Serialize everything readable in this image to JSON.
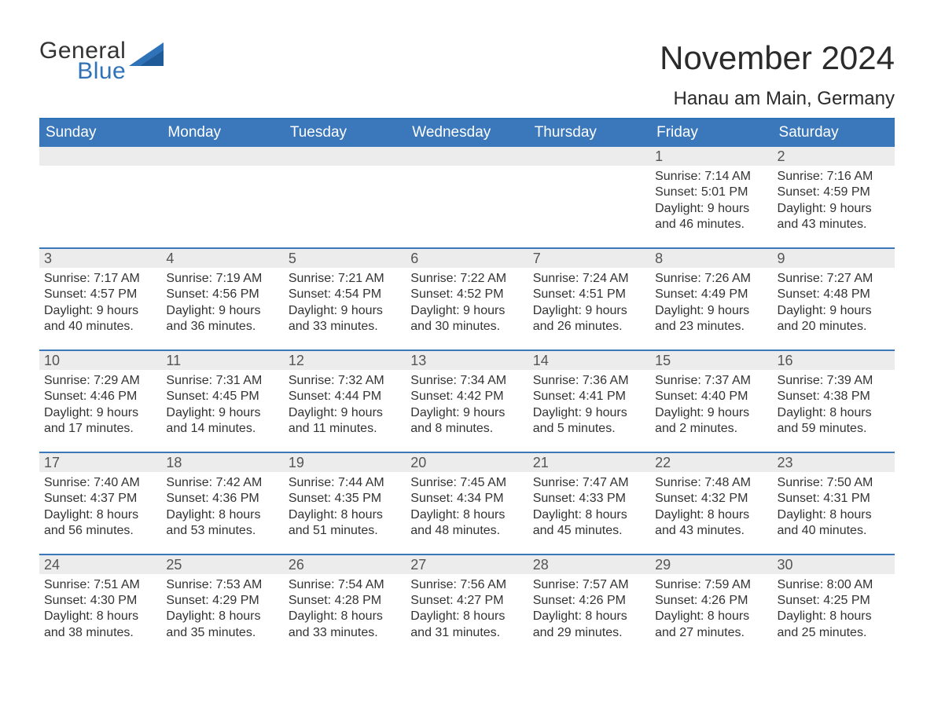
{
  "logo": {
    "word1": "General",
    "word2": "Blue",
    "sail_color": "#2f72b8",
    "text_color": "#333333"
  },
  "title": "November 2024",
  "location": "Hanau am Main, Germany",
  "colors": {
    "header_bg": "#3b78bb",
    "header_text": "#ffffff",
    "row_divider": "#3b78bb",
    "daynum_bg": "#ececec",
    "daynum_text": "#555555",
    "body_text": "#333333",
    "background": "#ffffff"
  },
  "fonts": {
    "title_size": 42,
    "location_size": 24,
    "dow_size": 19,
    "daynum_size": 18,
    "body_size": 16
  },
  "days_of_week": [
    "Sunday",
    "Monday",
    "Tuesday",
    "Wednesday",
    "Thursday",
    "Friday",
    "Saturday"
  ],
  "weeks": [
    [
      {
        "day": null
      },
      {
        "day": null
      },
      {
        "day": null
      },
      {
        "day": null
      },
      {
        "day": null
      },
      {
        "day": "1",
        "sunrise": "Sunrise: 7:14 AM",
        "sunset": "Sunset: 5:01 PM",
        "daylight1": "Daylight: 9 hours",
        "daylight2": "and 46 minutes."
      },
      {
        "day": "2",
        "sunrise": "Sunrise: 7:16 AM",
        "sunset": "Sunset: 4:59 PM",
        "daylight1": "Daylight: 9 hours",
        "daylight2": "and 43 minutes."
      }
    ],
    [
      {
        "day": "3",
        "sunrise": "Sunrise: 7:17 AM",
        "sunset": "Sunset: 4:57 PM",
        "daylight1": "Daylight: 9 hours",
        "daylight2": "and 40 minutes."
      },
      {
        "day": "4",
        "sunrise": "Sunrise: 7:19 AM",
        "sunset": "Sunset: 4:56 PM",
        "daylight1": "Daylight: 9 hours",
        "daylight2": "and 36 minutes."
      },
      {
        "day": "5",
        "sunrise": "Sunrise: 7:21 AM",
        "sunset": "Sunset: 4:54 PM",
        "daylight1": "Daylight: 9 hours",
        "daylight2": "and 33 minutes."
      },
      {
        "day": "6",
        "sunrise": "Sunrise: 7:22 AM",
        "sunset": "Sunset: 4:52 PM",
        "daylight1": "Daylight: 9 hours",
        "daylight2": "and 30 minutes."
      },
      {
        "day": "7",
        "sunrise": "Sunrise: 7:24 AM",
        "sunset": "Sunset: 4:51 PM",
        "daylight1": "Daylight: 9 hours",
        "daylight2": "and 26 minutes."
      },
      {
        "day": "8",
        "sunrise": "Sunrise: 7:26 AM",
        "sunset": "Sunset: 4:49 PM",
        "daylight1": "Daylight: 9 hours",
        "daylight2": "and 23 minutes."
      },
      {
        "day": "9",
        "sunrise": "Sunrise: 7:27 AM",
        "sunset": "Sunset: 4:48 PM",
        "daylight1": "Daylight: 9 hours",
        "daylight2": "and 20 minutes."
      }
    ],
    [
      {
        "day": "10",
        "sunrise": "Sunrise: 7:29 AM",
        "sunset": "Sunset: 4:46 PM",
        "daylight1": "Daylight: 9 hours",
        "daylight2": "and 17 minutes."
      },
      {
        "day": "11",
        "sunrise": "Sunrise: 7:31 AM",
        "sunset": "Sunset: 4:45 PM",
        "daylight1": "Daylight: 9 hours",
        "daylight2": "and 14 minutes."
      },
      {
        "day": "12",
        "sunrise": "Sunrise: 7:32 AM",
        "sunset": "Sunset: 4:44 PM",
        "daylight1": "Daylight: 9 hours",
        "daylight2": "and 11 minutes."
      },
      {
        "day": "13",
        "sunrise": "Sunrise: 7:34 AM",
        "sunset": "Sunset: 4:42 PM",
        "daylight1": "Daylight: 9 hours",
        "daylight2": "and 8 minutes."
      },
      {
        "day": "14",
        "sunrise": "Sunrise: 7:36 AM",
        "sunset": "Sunset: 4:41 PM",
        "daylight1": "Daylight: 9 hours",
        "daylight2": "and 5 minutes."
      },
      {
        "day": "15",
        "sunrise": "Sunrise: 7:37 AM",
        "sunset": "Sunset: 4:40 PM",
        "daylight1": "Daylight: 9 hours",
        "daylight2": "and 2 minutes."
      },
      {
        "day": "16",
        "sunrise": "Sunrise: 7:39 AM",
        "sunset": "Sunset: 4:38 PM",
        "daylight1": "Daylight: 8 hours",
        "daylight2": "and 59 minutes."
      }
    ],
    [
      {
        "day": "17",
        "sunrise": "Sunrise: 7:40 AM",
        "sunset": "Sunset: 4:37 PM",
        "daylight1": "Daylight: 8 hours",
        "daylight2": "and 56 minutes."
      },
      {
        "day": "18",
        "sunrise": "Sunrise: 7:42 AM",
        "sunset": "Sunset: 4:36 PM",
        "daylight1": "Daylight: 8 hours",
        "daylight2": "and 53 minutes."
      },
      {
        "day": "19",
        "sunrise": "Sunrise: 7:44 AM",
        "sunset": "Sunset: 4:35 PM",
        "daylight1": "Daylight: 8 hours",
        "daylight2": "and 51 minutes."
      },
      {
        "day": "20",
        "sunrise": "Sunrise: 7:45 AM",
        "sunset": "Sunset: 4:34 PM",
        "daylight1": "Daylight: 8 hours",
        "daylight2": "and 48 minutes."
      },
      {
        "day": "21",
        "sunrise": "Sunrise: 7:47 AM",
        "sunset": "Sunset: 4:33 PM",
        "daylight1": "Daylight: 8 hours",
        "daylight2": "and 45 minutes."
      },
      {
        "day": "22",
        "sunrise": "Sunrise: 7:48 AM",
        "sunset": "Sunset: 4:32 PM",
        "daylight1": "Daylight: 8 hours",
        "daylight2": "and 43 minutes."
      },
      {
        "day": "23",
        "sunrise": "Sunrise: 7:50 AM",
        "sunset": "Sunset: 4:31 PM",
        "daylight1": "Daylight: 8 hours",
        "daylight2": "and 40 minutes."
      }
    ],
    [
      {
        "day": "24",
        "sunrise": "Sunrise: 7:51 AM",
        "sunset": "Sunset: 4:30 PM",
        "daylight1": "Daylight: 8 hours",
        "daylight2": "and 38 minutes."
      },
      {
        "day": "25",
        "sunrise": "Sunrise: 7:53 AM",
        "sunset": "Sunset: 4:29 PM",
        "daylight1": "Daylight: 8 hours",
        "daylight2": "and 35 minutes."
      },
      {
        "day": "26",
        "sunrise": "Sunrise: 7:54 AM",
        "sunset": "Sunset: 4:28 PM",
        "daylight1": "Daylight: 8 hours",
        "daylight2": "and 33 minutes."
      },
      {
        "day": "27",
        "sunrise": "Sunrise: 7:56 AM",
        "sunset": "Sunset: 4:27 PM",
        "daylight1": "Daylight: 8 hours",
        "daylight2": "and 31 minutes."
      },
      {
        "day": "28",
        "sunrise": "Sunrise: 7:57 AM",
        "sunset": "Sunset: 4:26 PM",
        "daylight1": "Daylight: 8 hours",
        "daylight2": "and 29 minutes."
      },
      {
        "day": "29",
        "sunrise": "Sunrise: 7:59 AM",
        "sunset": "Sunset: 4:26 PM",
        "daylight1": "Daylight: 8 hours",
        "daylight2": "and 27 minutes."
      },
      {
        "day": "30",
        "sunrise": "Sunrise: 8:00 AM",
        "sunset": "Sunset: 4:25 PM",
        "daylight1": "Daylight: 8 hours",
        "daylight2": "and 25 minutes."
      }
    ]
  ]
}
